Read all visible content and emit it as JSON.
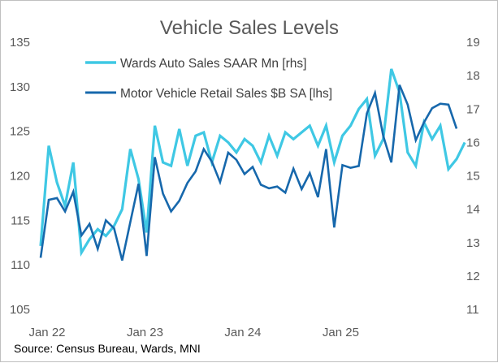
{
  "chart_data": {
    "type": "line",
    "title": "Vehicle Sales Levels",
    "source": "Source: Census Bureau, Wards, MNI",
    "x_tick_labels": [
      "Jan 22",
      "Jan 23",
      "Jan 24",
      "Jan 25"
    ],
    "y_left_ticks": [
      "105",
      "110",
      "115",
      "120",
      "125",
      "130",
      "135"
    ],
    "y_right_ticks": [
      "11",
      "12",
      "13",
      "14",
      "15",
      "16",
      "17",
      "18",
      "19"
    ],
    "y_left_range": [
      105,
      135
    ],
    "y_right_range": [
      11,
      19
    ],
    "grid": false,
    "legend_position": "top-left",
    "series": [
      {
        "name": "Wards Auto Sales SAAR Mn [rhs]",
        "axis": "right",
        "color": "#3fc8e4",
        "values": [
          12.9,
          15.9,
          14.8,
          14.1,
          15.4,
          12.7,
          13.1,
          13.4,
          13.2,
          13.5,
          14.0,
          15.8,
          14.9,
          13.3,
          16.5,
          15.4,
          15.3,
          16.4,
          15.3,
          16.2,
          16.3,
          15.4,
          16.2,
          16.0,
          15.7,
          16.1,
          15.9,
          15.4,
          16.2,
          15.6,
          16.3,
          16.1,
          16.3,
          16.5,
          15.9,
          16.5,
          15.4,
          16.2,
          16.5,
          17.0,
          17.3,
          15.6,
          16.1,
          18.2,
          17.5,
          15.7,
          15.3,
          16.6,
          16.1,
          16.5,
          15.2,
          15.5,
          16.0
        ],
        "end_month": "Jun 26"
      },
      {
        "name": "Motor Vehicle Retail Sales $B SA [lhs]",
        "axis": "left",
        "color": "#1768ac",
        "values": [
          110.8,
          117.3,
          117.5,
          116.0,
          118.2,
          113.3,
          114.6,
          111.8,
          115.0,
          114.1,
          110.5,
          114.8,
          119.1,
          111.0,
          122.1,
          118.0,
          116.0,
          117.2,
          119.2,
          120.5,
          123.0,
          121.6,
          119.3,
          122.6,
          121.8,
          120.2,
          121.0,
          119.0,
          118.6,
          118.8,
          118.1,
          120.8,
          118.5,
          120.3,
          117.6,
          123.0,
          114.2,
          121.2,
          120.9,
          121.1,
          127.0,
          129.3,
          124.5,
          121.5,
          130.2,
          128.0,
          124.0,
          126.0,
          127.6,
          128.1,
          128.0,
          125.3
        ],
        "end_month": "Apr 26"
      }
    ]
  }
}
